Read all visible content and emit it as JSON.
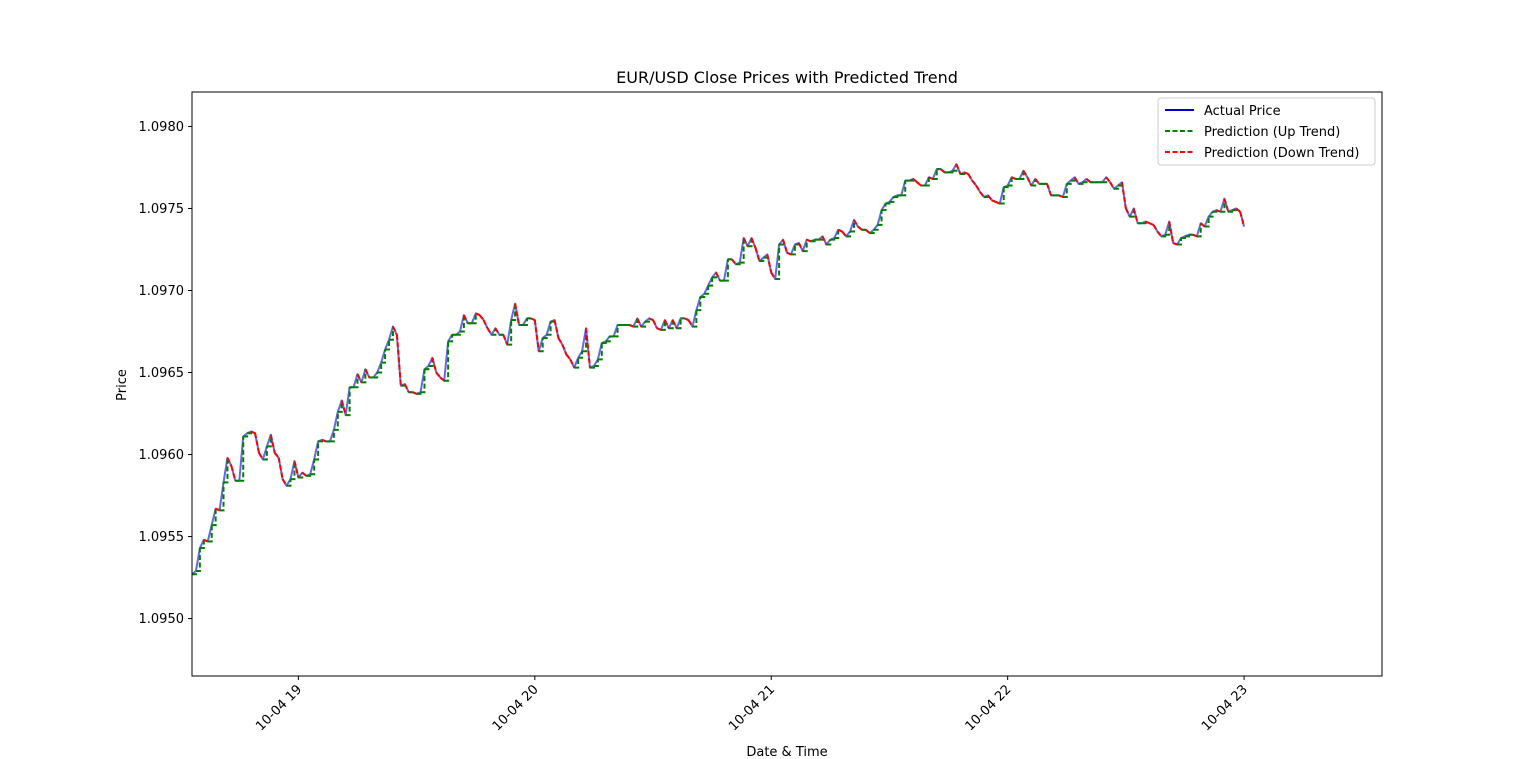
{
  "chart_data": {
    "type": "line",
    "title": "EUR/USD Close Prices with Predicted Trend",
    "xlabel": "Date & Time",
    "ylabel": "Price",
    "xlim": [
      "10-04 18:33",
      "10-04 23:35"
    ],
    "ylim": [
      1.09465,
      1.09821
    ],
    "x_tick_labels": [
      "10-04 19",
      "10-04 20",
      "10-04 21",
      "10-04 22",
      "10-04 23"
    ],
    "y_tick_labels": [
      "1.0950",
      "1.0955",
      "1.0960",
      "1.0965",
      "1.0970",
      "1.0975",
      "1.0980"
    ],
    "x_ticks_hours": [
      19,
      20,
      21,
      22,
      23
    ],
    "y_ticks": [
      1.095,
      1.0955,
      1.096,
      1.0965,
      1.097,
      1.0975,
      1.098
    ],
    "legend_position": "top-right",
    "grid": false,
    "series": [
      {
        "name": "Actual Price",
        "color": "#6666ee",
        "legend_color": "#0000cc",
        "style": "solid",
        "x": [
          "18:33",
          "18:34",
          "18:35",
          "18:36",
          "18:37",
          "18:38",
          "18:39",
          "18:40",
          "18:41",
          "18:42",
          "18:43",
          "18:44",
          "18:45",
          "18:46",
          "18:47",
          "18:48",
          "18:49",
          "18:50",
          "18:51",
          "18:52",
          "18:53",
          "18:54",
          "18:55",
          "18:56",
          "18:57",
          "18:58",
          "18:59",
          "19:00",
          "19:01",
          "19:02",
          "19:03",
          "19:04",
          "19:05",
          "19:06",
          "19:07",
          "19:08",
          "19:09",
          "19:10",
          "19:11",
          "19:12",
          "19:13",
          "19:14",
          "19:15",
          "19:16",
          "19:17",
          "19:18",
          "19:19",
          "19:20",
          "19:21",
          "19:22",
          "19:23",
          "19:24",
          "19:25",
          "19:26",
          "19:27",
          "19:28",
          "19:29",
          "19:30",
          "19:31",
          "19:32",
          "19:33",
          "19:34",
          "19:35",
          "19:36",
          "19:37",
          "19:38",
          "19:39",
          "19:40",
          "19:41",
          "19:42",
          "19:43",
          "19:44",
          "19:45",
          "19:46",
          "19:47",
          "19:48",
          "19:49",
          "19:50",
          "19:51",
          "19:52",
          "19:53",
          "19:54",
          "19:55",
          "19:56",
          "19:57",
          "19:58",
          "19:59",
          "20:00",
          "20:01",
          "20:02",
          "20:03",
          "20:04",
          "20:05",
          "20:06",
          "20:07",
          "20:08",
          "20:09",
          "20:10",
          "20:11",
          "20:12",
          "20:13",
          "20:14",
          "20:15",
          "20:16",
          "20:17",
          "20:18",
          "20:19",
          "20:20",
          "20:21",
          "20:22",
          "20:23",
          "20:24",
          "20:25",
          "20:26",
          "20:27",
          "20:28",
          "20:29",
          "20:30",
          "20:31",
          "20:32",
          "20:33",
          "20:34",
          "20:35",
          "20:36",
          "20:37",
          "20:38",
          "20:39",
          "20:40",
          "20:41",
          "20:42",
          "20:43",
          "20:44",
          "20:45",
          "20:46",
          "20:47",
          "20:48",
          "20:49",
          "20:50",
          "20:51",
          "20:52",
          "20:53",
          "20:54",
          "20:55",
          "20:56",
          "20:57",
          "20:58",
          "20:59",
          "21:00",
          "21:01",
          "21:02",
          "21:03",
          "21:04",
          "21:05",
          "21:06",
          "21:07",
          "21:08",
          "21:09",
          "21:10",
          "21:11",
          "21:12",
          "21:13",
          "21:14",
          "21:15",
          "21:16",
          "21:17",
          "21:18",
          "21:19",
          "21:20",
          "21:21",
          "21:22",
          "21:23",
          "21:24",
          "21:25",
          "21:26",
          "21:27",
          "21:28",
          "21:29",
          "21:30",
          "21:31",
          "21:32",
          "21:33",
          "21:34",
          "21:35",
          "21:36",
          "21:37",
          "21:38",
          "21:39",
          "21:40",
          "21:41",
          "21:42",
          "21:43",
          "21:44",
          "21:45",
          "21:46",
          "21:47",
          "21:48",
          "21:49",
          "21:50",
          "21:51",
          "21:52",
          "21:53",
          "21:54",
          "21:55",
          "21:56",
          "21:57",
          "21:58",
          "21:59",
          "22:00",
          "22:01",
          "22:02",
          "22:03",
          "22:04",
          "22:05",
          "22:06",
          "22:07",
          "22:08",
          "22:09",
          "22:10",
          "22:11",
          "22:12",
          "22:13",
          "22:14",
          "22:15",
          "22:16",
          "22:17",
          "22:18",
          "22:19",
          "22:20",
          "22:21",
          "22:22",
          "22:23",
          "22:24",
          "22:25",
          "22:26",
          "22:27",
          "22:28",
          "22:29",
          "22:30",
          "22:31",
          "22:32",
          "22:33",
          "22:34",
          "22:35",
          "22:36",
          "22:37",
          "22:38",
          "22:39",
          "22:40",
          "22:41",
          "22:42",
          "22:43",
          "22:44",
          "22:45",
          "22:46",
          "22:47",
          "22:48",
          "22:49",
          "22:50",
          "22:51",
          "22:52",
          "22:53",
          "22:54",
          "22:55",
          "22:56",
          "22:57",
          "22:58",
          "22:59",
          "23:00"
        ],
        "values": [
          1.09527,
          1.09529,
          1.09543,
          1.09548,
          1.09547,
          1.09557,
          1.09567,
          1.09566,
          1.09583,
          1.09598,
          1.09593,
          1.09584,
          1.09584,
          1.09611,
          1.09613,
          1.09614,
          1.09613,
          1.09601,
          1.09597,
          1.09605,
          1.09612,
          1.09601,
          1.09598,
          1.09585,
          1.09581,
          1.09585,
          1.09596,
          1.09586,
          1.09589,
          1.09587,
          1.09588,
          1.09597,
          1.09608,
          1.09609,
          1.09608,
          1.09608,
          1.09615,
          1.09626,
          1.09633,
          1.09624,
          1.09641,
          1.09641,
          1.09649,
          1.09644,
          1.09652,
          1.09647,
          1.09647,
          1.0965,
          1.09656,
          1.09664,
          1.0967,
          1.09678,
          1.09673,
          1.09642,
          1.09643,
          1.09638,
          1.09638,
          1.09637,
          1.09638,
          1.09652,
          1.09654,
          1.09659,
          1.0965,
          1.09647,
          1.09645,
          1.09669,
          1.09673,
          1.09673,
          1.09675,
          1.09685,
          1.0968,
          1.0968,
          1.09686,
          1.09685,
          1.09682,
          1.09677,
          1.09673,
          1.09677,
          1.09673,
          1.09673,
          1.09667,
          1.09682,
          1.09692,
          1.09679,
          1.09679,
          1.09683,
          1.09683,
          1.09682,
          1.09663,
          1.09671,
          1.09673,
          1.09681,
          1.09682,
          1.09671,
          1.09667,
          1.09661,
          1.09658,
          1.09653,
          1.09659,
          1.09663,
          1.09677,
          1.09653,
          1.09654,
          1.09658,
          1.09668,
          1.09669,
          1.09672,
          1.09672,
          1.09679,
          1.09679,
          1.09679,
          1.09679,
          1.09678,
          1.09683,
          1.09678,
          1.09681,
          1.09683,
          1.09682,
          1.09677,
          1.09676,
          1.09682,
          1.09677,
          1.09682,
          1.09677,
          1.09683,
          1.09683,
          1.09682,
          1.09678,
          1.09688,
          1.09696,
          1.09698,
          1.09703,
          1.09708,
          1.09711,
          1.09706,
          1.09706,
          1.09719,
          1.09719,
          1.09716,
          1.09717,
          1.09732,
          1.09727,
          1.09732,
          1.09726,
          1.09718,
          1.0972,
          1.09722,
          1.09711,
          1.09707,
          1.09728,
          1.09731,
          1.09723,
          1.09722,
          1.09728,
          1.09729,
          1.09724,
          1.09731,
          1.0973,
          1.09731,
          1.09731,
          1.09733,
          1.09728,
          1.09731,
          1.09732,
          1.09737,
          1.09736,
          1.09733,
          1.09736,
          1.09743,
          1.09739,
          1.09737,
          1.09737,
          1.09735,
          1.09737,
          1.0974,
          1.09749,
          1.09753,
          1.09754,
          1.09757,
          1.09758,
          1.09758,
          1.09767,
          1.09767,
          1.09768,
          1.09766,
          1.09764,
          1.09764,
          1.09769,
          1.09768,
          1.09774,
          1.09774,
          1.09772,
          1.09772,
          1.09773,
          1.09777,
          1.09771,
          1.09772,
          1.09771,
          1.09767,
          1.09764,
          1.0976,
          1.09757,
          1.09758,
          1.09755,
          1.09754,
          1.09753,
          1.09763,
          1.09764,
          1.09769,
          1.09768,
          1.09768,
          1.09773,
          1.09769,
          1.09764,
          1.09768,
          1.09765,
          1.09765,
          1.09765,
          1.09758,
          1.09758,
          1.09758,
          1.09757,
          1.09765,
          1.09767,
          1.09769,
          1.09765,
          1.09766,
          1.09768,
          1.09766,
          1.09766,
          1.09766,
          1.09766,
          1.09769,
          1.09766,
          1.09762,
          1.09764,
          1.09766,
          1.0975,
          1.09745,
          1.0975,
          1.09741,
          1.09741,
          1.09742,
          1.09741,
          1.0974,
          1.09736,
          1.09733,
          1.09734,
          1.09742,
          1.09729,
          1.09728,
          1.09732,
          1.09733,
          1.09734,
          1.09734,
          1.09733,
          1.09741,
          1.09739,
          1.09745,
          1.09748,
          1.09749,
          1.09748,
          1.09756,
          1.09748,
          1.09749,
          1.0975,
          1.09748,
          1.09739
        ]
      },
      {
        "name": "Prediction (Up Trend)",
        "color": "#008000",
        "style": "dashed"
      },
      {
        "name": "Prediction (Down Trend)",
        "color": "#ff0000",
        "style": "dashed"
      }
    ],
    "prediction_rule": "step-hold"
  }
}
